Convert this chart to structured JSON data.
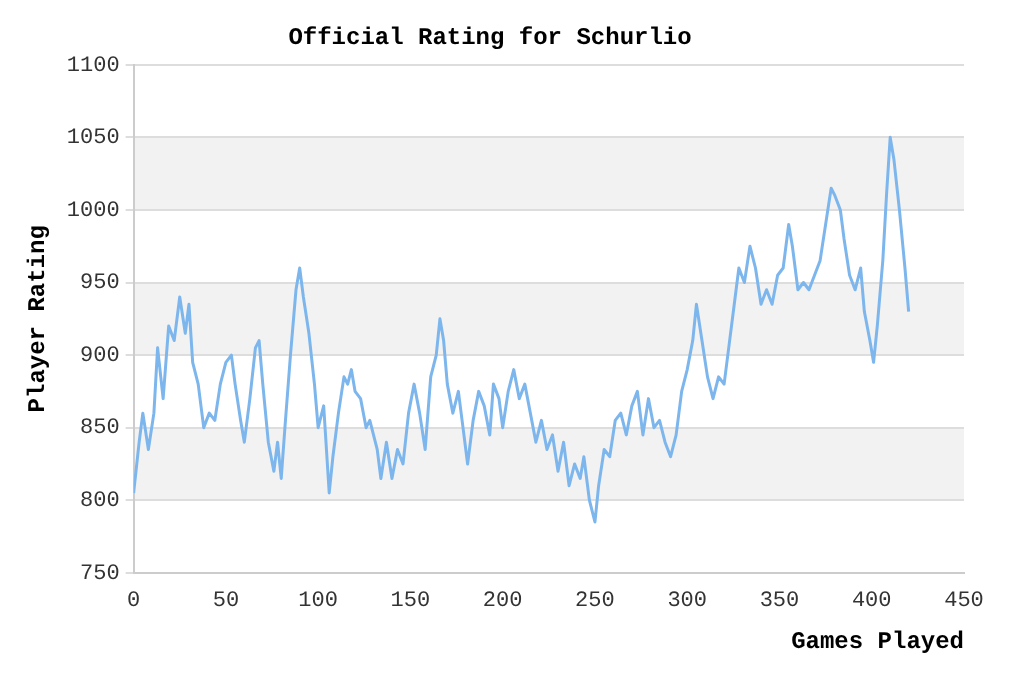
{
  "chart_data": {
    "type": "line",
    "title": "Official Rating for Schurlio",
    "xlabel": "Games Played",
    "ylabel": "Player Rating",
    "xlim": [
      0,
      450
    ],
    "xticks": [
      0,
      50,
      100,
      150,
      200,
      250,
      300,
      350,
      400,
      450
    ],
    "ylim": [
      750,
      1100
    ],
    "yticks": [
      750,
      800,
      850,
      900,
      950,
      1000,
      1050,
      1100
    ],
    "grid": "y",
    "legend": false,
    "marker": "none",
    "line_style": "solid",
    "series": [
      {
        "color": "#7db6ec",
        "x": [
          0,
          3,
          5,
          8,
          11,
          13,
          16,
          19,
          22,
          25,
          28,
          30,
          32,
          35,
          38,
          41,
          44,
          47,
          50,
          53,
          55,
          58,
          60,
          63,
          66,
          68,
          70,
          73,
          76,
          78,
          80,
          82,
          85,
          88,
          90,
          92,
          95,
          98,
          100,
          103,
          106,
          108,
          111,
          114,
          116,
          118,
          120,
          123,
          126,
          128,
          130,
          132,
          134,
          137,
          140,
          143,
          146,
          149,
          152,
          155,
          158,
          161,
          164,
          166,
          168,
          170,
          173,
          176,
          179,
          181,
          184,
          187,
          190,
          193,
          195,
          198,
          200,
          203,
          206,
          209,
          212,
          215,
          218,
          221,
          224,
          227,
          230,
          233,
          236,
          239,
          242,
          244,
          247,
          250,
          252,
          255,
          258,
          261,
          264,
          267,
          270,
          273,
          276,
          279,
          282,
          285,
          288,
          291,
          294,
          297,
          300,
          303,
          305,
          308,
          311,
          314,
          317,
          320,
          323,
          326,
          328,
          331,
          334,
          337,
          340,
          343,
          346,
          349,
          352,
          355,
          357,
          360,
          363,
          366,
          369,
          372,
          375,
          378,
          380,
          383,
          385,
          388,
          391,
          394,
          396,
          399,
          401,
          403,
          406,
          408,
          410,
          412,
          415,
          418,
          420
        ],
        "values": [
          805,
          840,
          860,
          835,
          860,
          905,
          870,
          920,
          910,
          940,
          915,
          935,
          895,
          880,
          850,
          860,
          855,
          880,
          895,
          900,
          880,
          855,
          840,
          870,
          905,
          910,
          880,
          840,
          820,
          840,
          815,
          850,
          900,
          945,
          960,
          940,
          915,
          880,
          850,
          865,
          805,
          830,
          860,
          885,
          880,
          890,
          875,
          870,
          850,
          855,
          845,
          835,
          815,
          840,
          815,
          835,
          825,
          860,
          880,
          860,
          835,
          885,
          900,
          925,
          910,
          880,
          860,
          875,
          845,
          825,
          855,
          875,
          865,
          845,
          880,
          870,
          850,
          875,
          890,
          870,
          880,
          860,
          840,
          855,
          835,
          845,
          820,
          840,
          810,
          825,
          815,
          830,
          800,
          785,
          810,
          835,
          830,
          855,
          860,
          845,
          865,
          875,
          845,
          870,
          850,
          855,
          840,
          830,
          845,
          875,
          890,
          910,
          935,
          910,
          885,
          870,
          885,
          880,
          910,
          940,
          960,
          950,
          975,
          960,
          935,
          945,
          935,
          955,
          960,
          990,
          975,
          945,
          950,
          945,
          955,
          965,
          990,
          1015,
          1010,
          1000,
          980,
          955,
          945,
          960,
          930,
          910,
          895,
          920,
          965,
          1010,
          1050,
          1035,
          1000,
          960,
          930
        ]
      }
    ]
  }
}
